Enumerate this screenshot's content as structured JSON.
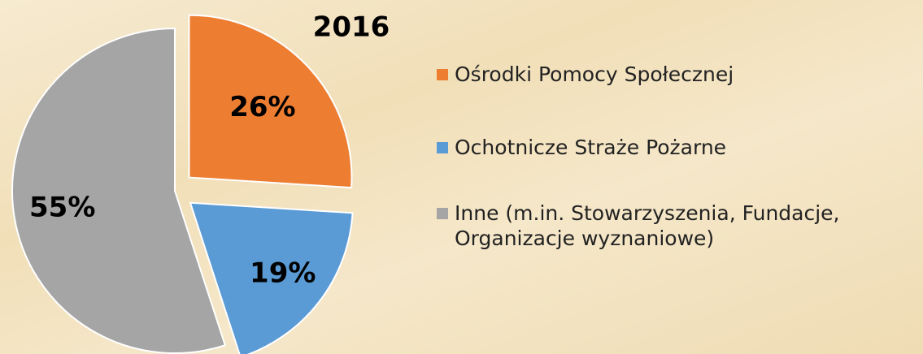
{
  "chart_data": {
    "type": "pie",
    "title": "2016",
    "categories": [
      "Ośrodki Pomocy Społecznej",
      "Ochotnicze Straże Pożarne",
      "Inne (m.in. Stowarzyszenia, Fundacje, Organizacje wyznaniowe)"
    ],
    "values": [
      26,
      19,
      55
    ],
    "value_labels": [
      "26%",
      "19%",
      "55%"
    ],
    "colors": [
      "#ed7d31",
      "#5b9bd5",
      "#a5a5a5"
    ]
  }
}
